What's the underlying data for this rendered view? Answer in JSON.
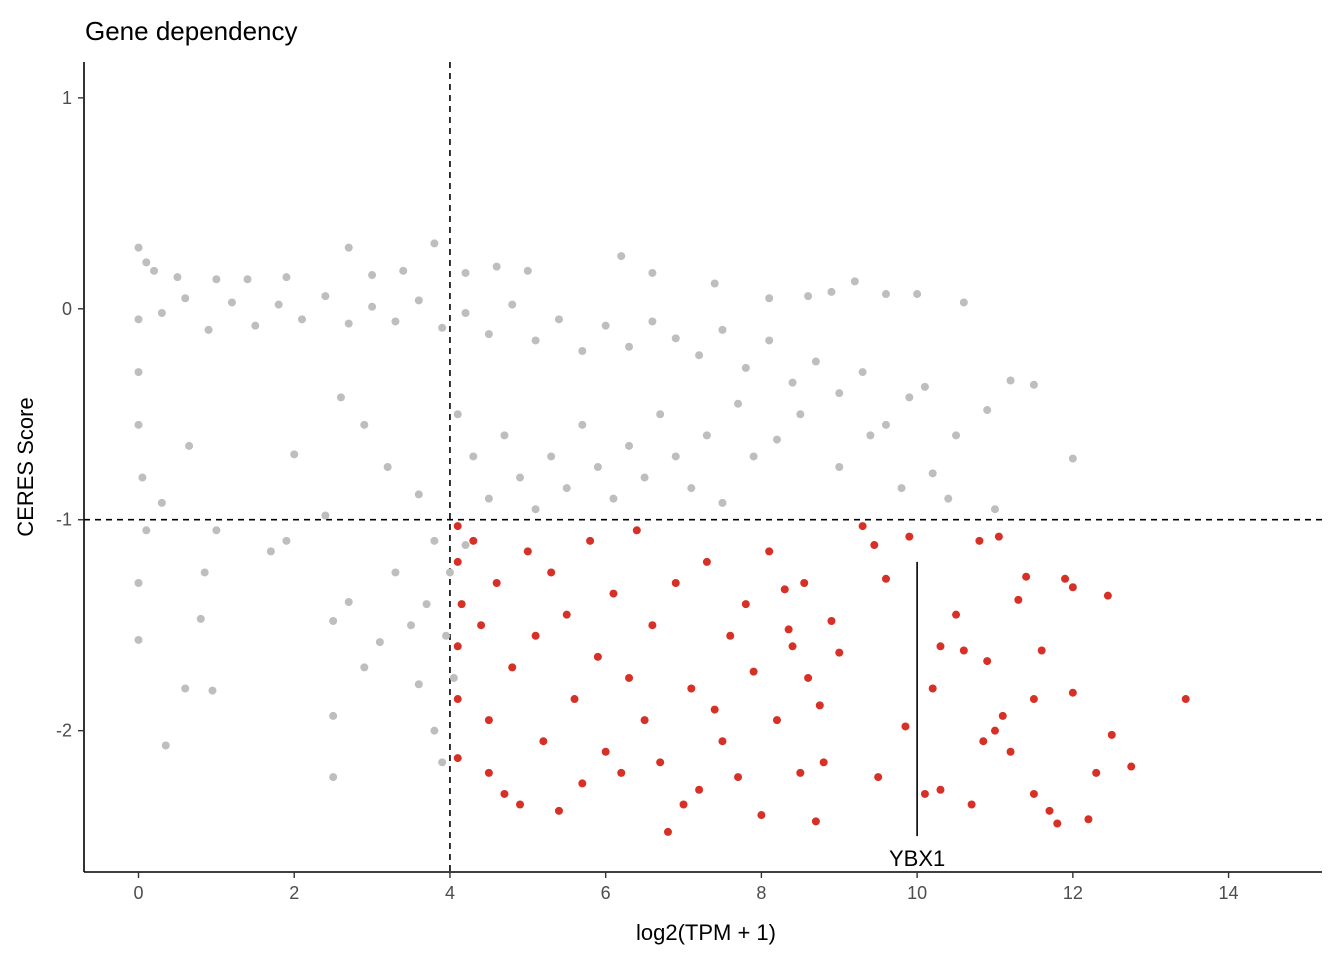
{
  "chart_data": {
    "type": "scatter",
    "title": "Gene dependency",
    "xlabel": "log2(TPM + 1)",
    "ylabel": "CERES Score",
    "xlim": [
      -0.7,
      15.2
    ],
    "ylim": [
      -2.67,
      1.17
    ],
    "x_ticks": [
      0,
      2,
      4,
      6,
      8,
      10,
      12,
      14
    ],
    "y_ticks": [
      1,
      0,
      -1,
      -2
    ],
    "x_tick_labels": [
      "0",
      "2",
      "4",
      "6",
      "8",
      "10",
      "12",
      "14"
    ],
    "y_tick_labels": [
      "1",
      "0",
      "-1",
      "-2"
    ],
    "grid": false,
    "legend": "none",
    "thresholds": {
      "x": 4,
      "y": -1
    },
    "colors": {
      "background_points": "#bebebe",
      "highlight_points": "#d73027",
      "axis": "#000000"
    },
    "series": [
      {
        "key": "background",
        "color": "#bebebe",
        "points": [
          [
            0.0,
            0.29
          ],
          [
            0.1,
            0.22
          ],
          [
            0.2,
            0.18
          ],
          [
            0.5,
            0.15
          ],
          [
            1.0,
            0.14
          ],
          [
            1.4,
            0.14
          ],
          [
            1.9,
            0.15
          ],
          [
            2.7,
            0.29
          ],
          [
            3.0,
            0.16
          ],
          [
            3.4,
            0.18
          ],
          [
            3.8,
            0.31
          ],
          [
            4.2,
            0.17
          ],
          [
            4.6,
            0.2
          ],
          [
            5.0,
            0.18
          ],
          [
            6.2,
            0.25
          ],
          [
            6.6,
            0.17
          ],
          [
            7.4,
            0.12
          ],
          [
            8.1,
            0.05
          ],
          [
            8.6,
            0.06
          ],
          [
            8.9,
            0.08
          ],
          [
            9.2,
            0.13
          ],
          [
            9.6,
            0.07
          ],
          [
            10.0,
            0.07
          ],
          [
            10.6,
            0.03
          ],
          [
            11.2,
            -0.34
          ],
          [
            11.5,
            -0.36
          ],
          [
            12.0,
            -0.71
          ],
          [
            0.0,
            -0.05
          ],
          [
            0.3,
            -0.02
          ],
          [
            0.6,
            0.05
          ],
          [
            0.9,
            -0.1
          ],
          [
            1.2,
            0.03
          ],
          [
            1.5,
            -0.08
          ],
          [
            1.8,
            0.02
          ],
          [
            2.1,
            -0.05
          ],
          [
            2.4,
            0.06
          ],
          [
            2.7,
            -0.07
          ],
          [
            3.0,
            0.01
          ],
          [
            3.3,
            -0.06
          ],
          [
            3.6,
            0.04
          ],
          [
            3.9,
            -0.09
          ],
          [
            4.2,
            -0.02
          ],
          [
            4.5,
            -0.12
          ],
          [
            4.8,
            0.02
          ],
          [
            5.1,
            -0.15
          ],
          [
            5.4,
            -0.05
          ],
          [
            5.7,
            -0.2
          ],
          [
            6.0,
            -0.08
          ],
          [
            6.3,
            -0.18
          ],
          [
            6.6,
            -0.06
          ],
          [
            6.9,
            -0.14
          ],
          [
            7.2,
            -0.22
          ],
          [
            7.5,
            -0.1
          ],
          [
            7.8,
            -0.28
          ],
          [
            8.1,
            -0.15
          ],
          [
            8.4,
            -0.35
          ],
          [
            8.7,
            -0.25
          ],
          [
            9.0,
            -0.4
          ],
          [
            9.3,
            -0.3
          ],
          [
            9.6,
            -0.55
          ],
          [
            9.9,
            -0.42
          ],
          [
            10.2,
            -0.78
          ],
          [
            10.5,
            -0.6
          ],
          [
            10.9,
            -0.48
          ],
          [
            0.0,
            -0.3
          ],
          [
            0.0,
            -0.55
          ],
          [
            0.05,
            -0.8
          ],
          [
            0.1,
            -1.05
          ],
          [
            0.0,
            -1.3
          ],
          [
            0.0,
            -1.57
          ],
          [
            0.35,
            -2.07
          ],
          [
            0.6,
            -1.8
          ],
          [
            0.8,
            -1.47
          ],
          [
            0.85,
            -1.25
          ],
          [
            0.95,
            -1.81
          ],
          [
            0.65,
            -0.65
          ],
          [
            0.3,
            -0.92
          ],
          [
            1.0,
            -1.05
          ],
          [
            1.7,
            -1.15
          ],
          [
            1.9,
            -1.1
          ],
          [
            2.0,
            -0.69
          ],
          [
            2.4,
            -0.98
          ],
          [
            2.5,
            -1.48
          ],
          [
            2.5,
            -1.93
          ],
          [
            2.5,
            -2.22
          ],
          [
            2.7,
            -1.39
          ],
          [
            2.9,
            -1.7
          ],
          [
            3.1,
            -1.58
          ],
          [
            3.3,
            -1.25
          ],
          [
            3.5,
            -1.5
          ],
          [
            3.6,
            -1.78
          ],
          [
            3.7,
            -1.4
          ],
          [
            3.8,
            -2.0
          ],
          [
            3.9,
            -2.15
          ],
          [
            3.8,
            -1.1
          ],
          [
            3.6,
            -0.88
          ],
          [
            3.2,
            -0.75
          ],
          [
            2.9,
            -0.55
          ],
          [
            2.6,
            -0.42
          ],
          [
            4.1,
            -0.5
          ],
          [
            4.3,
            -0.7
          ],
          [
            4.5,
            -0.9
          ],
          [
            4.7,
            -0.6
          ],
          [
            4.9,
            -0.8
          ],
          [
            5.1,
            -0.95
          ],
          [
            5.3,
            -0.7
          ],
          [
            5.5,
            -0.85
          ],
          [
            5.7,
            -0.55
          ],
          [
            5.9,
            -0.75
          ],
          [
            6.1,
            -0.9
          ],
          [
            6.3,
            -0.65
          ],
          [
            6.5,
            -0.8
          ],
          [
            6.7,
            -0.5
          ],
          [
            6.9,
            -0.7
          ],
          [
            7.1,
            -0.85
          ],
          [
            7.3,
            -0.6
          ],
          [
            7.5,
            -0.92
          ],
          [
            7.7,
            -0.45
          ],
          [
            7.9,
            -0.7
          ],
          [
            8.2,
            -0.62
          ],
          [
            8.5,
            -0.5
          ],
          [
            9.0,
            -0.75
          ],
          [
            9.4,
            -0.6
          ],
          [
            9.8,
            -0.85
          ],
          [
            10.1,
            -0.37
          ],
          [
            10.4,
            -0.9
          ],
          [
            11.0,
            -0.95
          ],
          [
            4.2,
            -1.12
          ],
          [
            4.0,
            -1.25
          ],
          [
            3.95,
            -1.55
          ],
          [
            4.05,
            -1.75
          ]
        ]
      },
      {
        "key": "highlight",
        "color": "#d73027",
        "points": [
          [
            4.1,
            -1.03
          ],
          [
            4.1,
            -1.2
          ],
          [
            4.15,
            -1.4
          ],
          [
            4.1,
            -1.6
          ],
          [
            4.1,
            -1.85
          ],
          [
            4.1,
            -2.13
          ],
          [
            4.3,
            -1.1
          ],
          [
            4.4,
            -1.5
          ],
          [
            4.5,
            -1.95
          ],
          [
            4.5,
            -2.2
          ],
          [
            4.6,
            -1.3
          ],
          [
            4.7,
            -2.3
          ],
          [
            4.8,
            -1.7
          ],
          [
            4.9,
            -2.35
          ],
          [
            5.0,
            -1.15
          ],
          [
            5.1,
            -1.55
          ],
          [
            5.2,
            -2.05
          ],
          [
            5.3,
            -1.25
          ],
          [
            5.4,
            -2.38
          ],
          [
            5.5,
            -1.45
          ],
          [
            5.6,
            -1.85
          ],
          [
            5.7,
            -2.25
          ],
          [
            5.8,
            -1.1
          ],
          [
            5.9,
            -1.65
          ],
          [
            6.0,
            -2.1
          ],
          [
            6.1,
            -1.35
          ],
          [
            6.2,
            -2.2
          ],
          [
            6.3,
            -1.75
          ],
          [
            6.4,
            -1.05
          ],
          [
            6.5,
            -1.95
          ],
          [
            6.6,
            -1.5
          ],
          [
            6.7,
            -2.15
          ],
          [
            6.8,
            -2.48
          ],
          [
            6.9,
            -1.3
          ],
          [
            7.0,
            -2.35
          ],
          [
            7.1,
            -1.8
          ],
          [
            7.2,
            -2.28
          ],
          [
            7.3,
            -1.2
          ],
          [
            7.4,
            -1.9
          ],
          [
            7.5,
            -2.05
          ],
          [
            7.6,
            -1.55
          ],
          [
            7.7,
            -2.22
          ],
          [
            7.8,
            -1.4
          ],
          [
            7.9,
            -1.72
          ],
          [
            8.0,
            -2.4
          ],
          [
            8.1,
            -1.15
          ],
          [
            8.2,
            -1.95
          ],
          [
            8.3,
            -1.33
          ],
          [
            8.4,
            -1.6
          ],
          [
            8.5,
            -2.2
          ],
          [
            8.6,
            -1.75
          ],
          [
            8.7,
            -2.43
          ],
          [
            8.75,
            -1.88
          ],
          [
            8.8,
            -2.15
          ],
          [
            8.9,
            -1.48
          ],
          [
            9.0,
            -1.63
          ],
          [
            8.55,
            -1.3
          ],
          [
            8.35,
            -1.52
          ],
          [
            9.3,
            -1.03
          ],
          [
            9.45,
            -1.12
          ],
          [
            9.6,
            -1.28
          ],
          [
            9.5,
            -2.22
          ],
          [
            9.9,
            -1.08
          ],
          [
            10.1,
            -2.3
          ],
          [
            10.3,
            -2.28
          ],
          [
            10.3,
            -1.6
          ],
          [
            10.5,
            -1.45
          ],
          [
            10.6,
            -1.62
          ],
          [
            10.7,
            -2.35
          ],
          [
            10.8,
            -1.1
          ],
          [
            10.9,
            -1.67
          ],
          [
            11.0,
            -2.0
          ],
          [
            11.1,
            -1.93
          ],
          [
            11.2,
            -2.1
          ],
          [
            11.3,
            -1.38
          ],
          [
            11.4,
            -1.27
          ],
          [
            11.5,
            -2.3
          ],
          [
            11.6,
            -1.62
          ],
          [
            11.7,
            -2.38
          ],
          [
            11.8,
            -2.44
          ],
          [
            12.0,
            -1.82
          ],
          [
            12.2,
            -2.42
          ],
          [
            12.3,
            -2.2
          ],
          [
            12.45,
            -1.36
          ],
          [
            12.5,
            -2.02
          ],
          [
            12.75,
            -2.17
          ],
          [
            13.45,
            -1.85
          ],
          [
            10.2,
            -1.8
          ],
          [
            9.85,
            -1.98
          ],
          [
            11.05,
            -1.08
          ],
          [
            11.5,
            -1.85
          ],
          [
            10.85,
            -2.05
          ],
          [
            11.9,
            -1.28
          ],
          [
            12.0,
            -1.32
          ]
        ]
      }
    ],
    "annotations": [
      {
        "label": "YBX1",
        "x": 10.0,
        "y": -1.2,
        "y_end": -2.5
      }
    ]
  }
}
